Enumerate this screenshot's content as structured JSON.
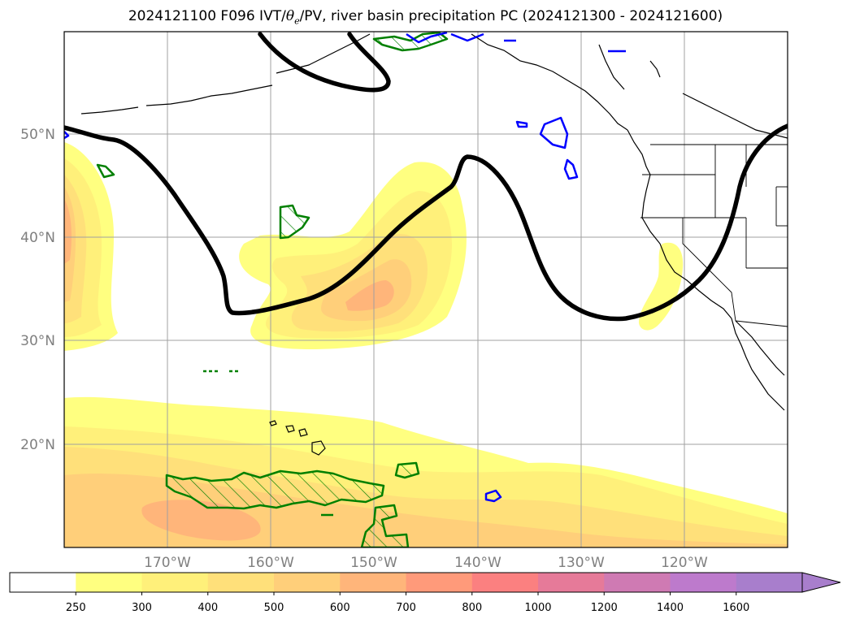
{
  "figure": {
    "title": {
      "prefix": "2024121100 F096 IVT/",
      "theta_symbol": "θ",
      "theta_subscript": "e",
      "suffix": "/PV, river basin precipitation PC (2024121300 - 2024121600)"
    },
    "lat_labels": [
      "50°N",
      "40°N",
      "30°N",
      "20°N"
    ],
    "lon_labels": [
      "170°W",
      "160°W",
      "150°W",
      "140°W",
      "130°W",
      "120°W"
    ]
  },
  "colorbar": {
    "ticks": [
      "250",
      "300",
      "400",
      "500",
      "600",
      "700",
      "800",
      "1000",
      "1200",
      "1400",
      "1600"
    ],
    "colors": [
      "#ffffff",
      "#ffff80",
      "#fff07a",
      "#ffe07a",
      "#ffcf7a",
      "#ffb57a",
      "#ff9a7a",
      "#fb8080",
      "#e67a99",
      "#cf7ab3",
      "#bd7acc",
      "#a87ecc"
    ]
  },
  "colors": {
    "pv_contour": "#000000",
    "green_contour": "#008000",
    "blue_contour": "#0000ff",
    "grid": "#a0a0a0"
  }
}
